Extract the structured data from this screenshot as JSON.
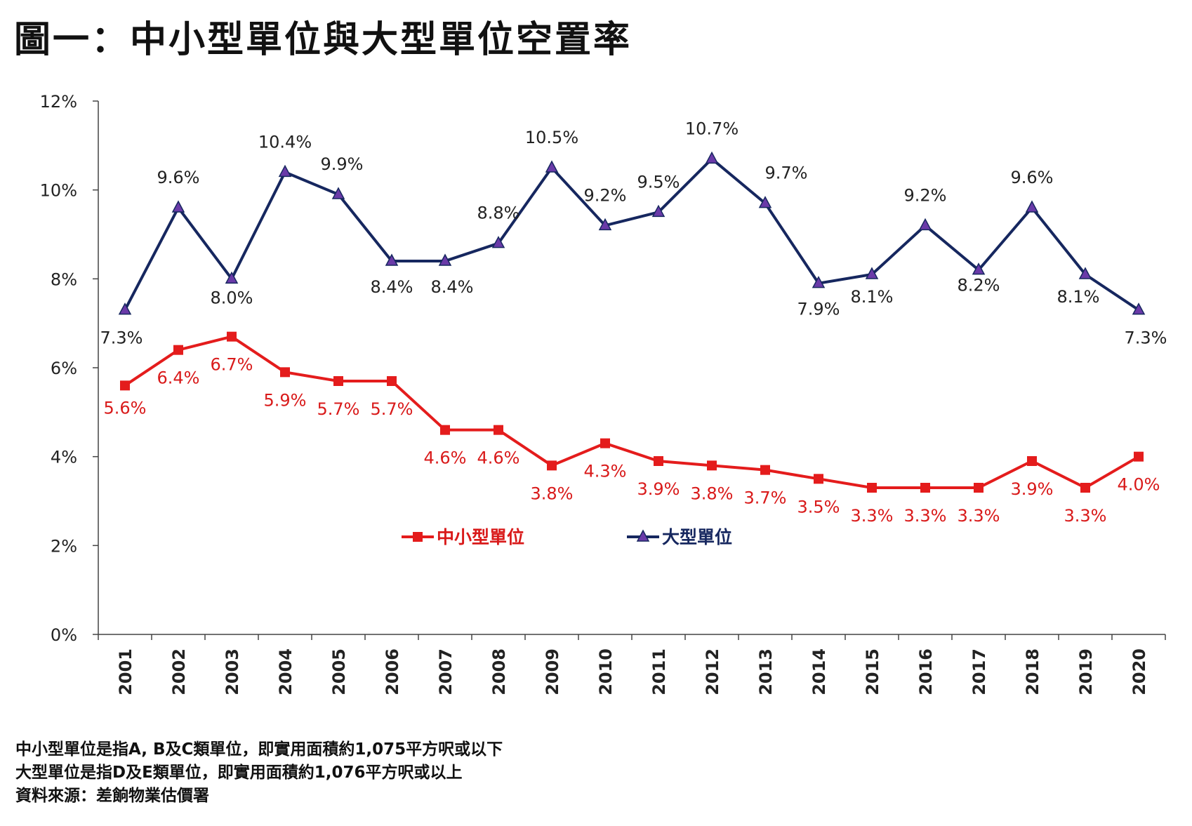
{
  "title": "圖一：中小型單位與大型單位空置率",
  "footnotes": [
    "中小型單位是指A, B及C類單位，即實用面積約1,075平方呎或以下",
    "大型單位是指D及E類單位，即實用面積約1,076平方呎或以上",
    "資料來源：差餉物業估價署"
  ],
  "chart_data": {
    "type": "line",
    "title": "",
    "xlabel": "",
    "ylabel": "",
    "ylim": [
      0,
      12
    ],
    "y_ticks": [
      "0%",
      "2%",
      "4%",
      "6%",
      "8%",
      "10%",
      "12%"
    ],
    "y_tick_values": [
      0,
      2,
      4,
      6,
      8,
      10,
      12
    ],
    "grid": false,
    "legend_position": "lower-center",
    "categories": [
      "2001",
      "2002",
      "2003",
      "2004",
      "2005",
      "2006",
      "2007",
      "2008",
      "2009",
      "2010",
      "2011",
      "2012",
      "2013",
      "2014",
      "2015",
      "2016",
      "2017",
      "2018",
      "2019",
      "2020"
    ],
    "series": [
      {
        "name": "中小型單位",
        "color": "#e41c1c",
        "marker": "square",
        "values": [
          5.6,
          6.4,
          6.7,
          5.9,
          5.7,
          5.7,
          4.6,
          4.6,
          3.8,
          4.3,
          3.9,
          3.8,
          3.7,
          3.5,
          3.3,
          3.3,
          3.3,
          3.9,
          3.3,
          4.0
        ],
        "labels": [
          "5.6%",
          "6.4%",
          "6.7%",
          "5.9%",
          "5.7%",
          "5.7%",
          "4.6%",
          "4.6%",
          "3.8%",
          "4.3%",
          "3.9%",
          "3.8%",
          "3.7%",
          "3.5%",
          "3.3%",
          "3.3%",
          "3.3%",
          "3.9%",
          "3.3%",
          "4.0%"
        ]
      },
      {
        "name": "大型單位",
        "color": "#16275f",
        "marker_color": "#6a3aa8",
        "marker": "triangle",
        "values": [
          7.3,
          9.6,
          8.0,
          10.4,
          9.9,
          8.4,
          8.4,
          8.8,
          10.5,
          9.2,
          9.5,
          10.7,
          9.7,
          7.9,
          8.1,
          9.2,
          8.2,
          9.6,
          8.1,
          7.3
        ],
        "labels": [
          "7.3%",
          "9.6%",
          "8.0%",
          "10.4%",
          "9.9%",
          "8.4%",
          "8.4%",
          "8.8%",
          "10.5%",
          "9.2%",
          "9.5%",
          "10.7%",
          "9.7%",
          "7.9%",
          "8.1%",
          "9.2%",
          "8.2%",
          "9.6%",
          "8.1%",
          "7.3%"
        ]
      }
    ]
  }
}
